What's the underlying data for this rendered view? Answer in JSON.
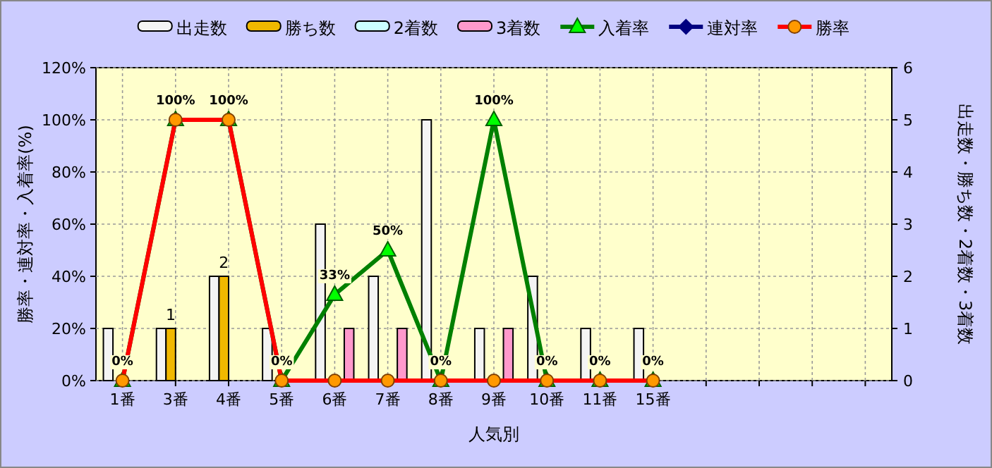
{
  "chart_data": {
    "type": "bar",
    "xlabel": "人気別",
    "ylabel": "勝率・連対率・入着率(%)",
    "y2label": "出走数・勝ち数・2着数・3着数",
    "categories": [
      "1番",
      "3番",
      "4番",
      "5番",
      "6番",
      "7番",
      "8番",
      "9番",
      "10番",
      "11番",
      "15番",
      null,
      null,
      null,
      null
    ],
    "ylim": [
      0,
      120
    ],
    "yticks": [
      {
        "value": 0,
        "label": "0%"
      },
      {
        "value": 20,
        "label": "20%"
      },
      {
        "value": 40,
        "label": "40%"
      },
      {
        "value": 60,
        "label": "60%"
      },
      {
        "value": 80,
        "label": "80%"
      },
      {
        "value": 100,
        "label": "100%"
      },
      {
        "value": 120,
        "label": "120%"
      }
    ],
    "y2lim": [
      0,
      6
    ],
    "y2ticks": [
      0,
      1,
      2,
      3,
      4,
      5,
      6
    ],
    "grid": true,
    "legend": "top",
    "series": [
      {
        "name": "出走数",
        "axis": "y2",
        "color": "#f4f4f4",
        "values": [
          1,
          1,
          2,
          1,
          3,
          2,
          5,
          1,
          2,
          1,
          1,
          null,
          null,
          null,
          null
        ]
      },
      {
        "name": "勝ち数",
        "axis": "y2",
        "color": "#f0b800",
        "values": [
          0,
          1,
          2,
          0,
          0,
          0,
          0,
          0,
          0,
          0,
          0,
          null,
          null,
          null,
          null
        ],
        "value_labels": [
          null,
          "1",
          "2",
          null,
          null,
          null,
          null,
          null,
          null,
          null,
          null,
          null,
          null,
          null,
          null
        ]
      },
      {
        "name": "2着数",
        "axis": "y2",
        "color": "#ccffff",
        "values": [
          0,
          0,
          0,
          0,
          0,
          0,
          0,
          0,
          0,
          0,
          0,
          null,
          null,
          null,
          null
        ]
      },
      {
        "name": "3着数",
        "axis": "y2",
        "color": "#ff99cc",
        "values": [
          0,
          0,
          0,
          0,
          1,
          1,
          0,
          1,
          0,
          0,
          0,
          null,
          null,
          null,
          null
        ]
      },
      {
        "name": "入着率",
        "type": "line",
        "axis": "y",
        "color": "#008000",
        "marker": "triangle",
        "colors": [
          "#00ff00",
          "#00ff00",
          "#00ff00",
          "#00ff00",
          "#00ff00",
          "#00ff00",
          "#00ff00",
          "#00ff00",
          "#00ff00",
          "#00ff00",
          "#00ff00",
          null,
          null,
          null,
          null
        ],
        "values": [
          0,
          100,
          100,
          0,
          33,
          50,
          0,
          100,
          0,
          0,
          0,
          null,
          null,
          null,
          null
        ],
        "value_labels": [
          "0%",
          "100%",
          "100%",
          "0%",
          "33%",
          "50%",
          "0%",
          "100%",
          "0%",
          "0%",
          "0%",
          null,
          null,
          null,
          null
        ]
      },
      {
        "name": "連対率",
        "type": "line",
        "axis": "y",
        "color": "#000080",
        "marker": "diamond",
        "values": [
          null,
          null,
          null,
          null,
          null,
          null,
          null,
          null,
          null,
          null,
          null,
          null,
          null,
          null,
          null
        ]
      },
      {
        "name": "勝率",
        "type": "line",
        "axis": "y",
        "color": "#ff0000",
        "marker": "circle",
        "colors": [
          "#ff9900",
          "#ff9900",
          "#ff9900",
          "#ff9900",
          "#ff9900",
          "#ff9900",
          "#ff9900",
          "#ff9900",
          "#ff9900",
          "#ff9900",
          "#ff9900",
          null,
          null,
          null,
          null
        ],
        "values": [
          0,
          100,
          100,
          0,
          0,
          0,
          0,
          0,
          0,
          0,
          0,
          null,
          null,
          null,
          null
        ]
      }
    ]
  }
}
